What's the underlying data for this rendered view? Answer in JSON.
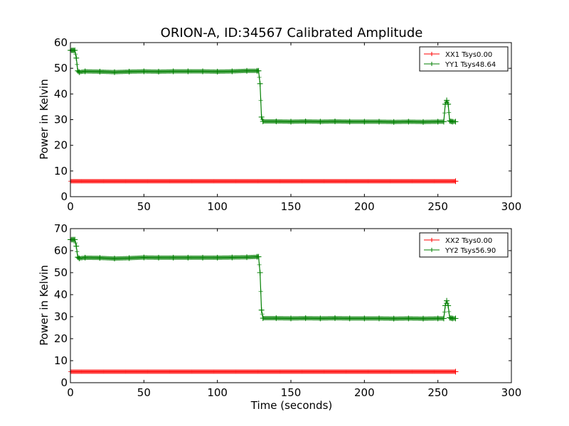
{
  "figure": {
    "title": "ORION-A, ID:34567 Calibrated Amplitude",
    "colors": {
      "xx": "#ff0000",
      "yy": "#007f00"
    }
  },
  "chart_data": [
    {
      "type": "line",
      "xlabel": "",
      "ylabel": "Power in Kelvin",
      "xlim": [
        0,
        300
      ],
      "ylim": [
        0,
        60
      ],
      "xticks": [
        "0",
        "50",
        "100",
        "150",
        "200",
        "250",
        "300"
      ],
      "yticks": [
        "0",
        "10",
        "20",
        "30",
        "40",
        "50",
        "60"
      ],
      "grid": false,
      "legend_position": "top-right",
      "marker": "+",
      "series": [
        {
          "name": "XX1 Tsys0.00",
          "color": "#ff0000",
          "x": [
            0,
            262
          ],
          "y": [
            6,
            6
          ]
        },
        {
          "name": "YY1 Tsys48.64",
          "color": "#007f00",
          "x": [
            0,
            1,
            2,
            3,
            4,
            5,
            6,
            10,
            20,
            30,
            40,
            50,
            60,
            70,
            80,
            90,
            100,
            110,
            120,
            127,
            128,
            129,
            130,
            131,
            140,
            150,
            160,
            170,
            180,
            190,
            200,
            210,
            220,
            230,
            240,
            250,
            254,
            255,
            256,
            257,
            258,
            259,
            260,
            262
          ],
          "y": [
            57,
            57,
            57,
            57,
            54,
            49,
            48.5,
            48.8,
            48.7,
            48.5,
            48.7,
            48.8,
            48.7,
            48.8,
            48.8,
            48.8,
            48.7,
            48.8,
            49.0,
            49.0,
            49.0,
            44,
            31,
            29.3,
            29.3,
            29.2,
            29.3,
            29.2,
            29.3,
            29.2,
            29.2,
            29.2,
            29.1,
            29.2,
            29.1,
            29.2,
            29.2,
            36,
            37.5,
            36,
            29.5,
            29.3,
            29.2,
            29.2
          ]
        }
      ]
    },
    {
      "type": "line",
      "xlabel": "Time (seconds)",
      "ylabel": "Power in Kelvin",
      "xlim": [
        0,
        300
      ],
      "ylim": [
        0,
        70
      ],
      "xticks": [
        "0",
        "50",
        "100",
        "150",
        "200",
        "250",
        "300"
      ],
      "yticks": [
        "0",
        "10",
        "20",
        "30",
        "40",
        "50",
        "60",
        "70"
      ],
      "grid": false,
      "legend_position": "top-right",
      "marker": "+",
      "series": [
        {
          "name": "XX2 Tsys0.00",
          "color": "#ff0000",
          "x": [
            0,
            262
          ],
          "y": [
            5,
            5
          ]
        },
        {
          "name": "YY2 Tsys56.90",
          "color": "#007f00",
          "x": [
            0,
            1,
            2,
            3,
            4,
            5,
            6,
            10,
            20,
            30,
            40,
            50,
            60,
            70,
            80,
            90,
            100,
            110,
            120,
            127,
            128,
            129,
            130,
            131,
            140,
            150,
            160,
            170,
            180,
            190,
            200,
            210,
            220,
            230,
            240,
            250,
            254,
            255,
            256,
            257,
            258,
            259,
            260,
            262
          ],
          "y": [
            65,
            65,
            65,
            65,
            62,
            57,
            56.5,
            56.8,
            56.7,
            56.4,
            56.6,
            56.9,
            56.8,
            56.8,
            56.8,
            56.8,
            56.8,
            56.9,
            57.0,
            57.2,
            57.2,
            50,
            33,
            29.3,
            29.3,
            29.2,
            29.3,
            29.2,
            29.3,
            29.2,
            29.2,
            29.2,
            29.1,
            29.2,
            29.1,
            29.2,
            29.2,
            35,
            37.2,
            35,
            29.5,
            29.3,
            29.2,
            29.2
          ]
        }
      ]
    }
  ]
}
